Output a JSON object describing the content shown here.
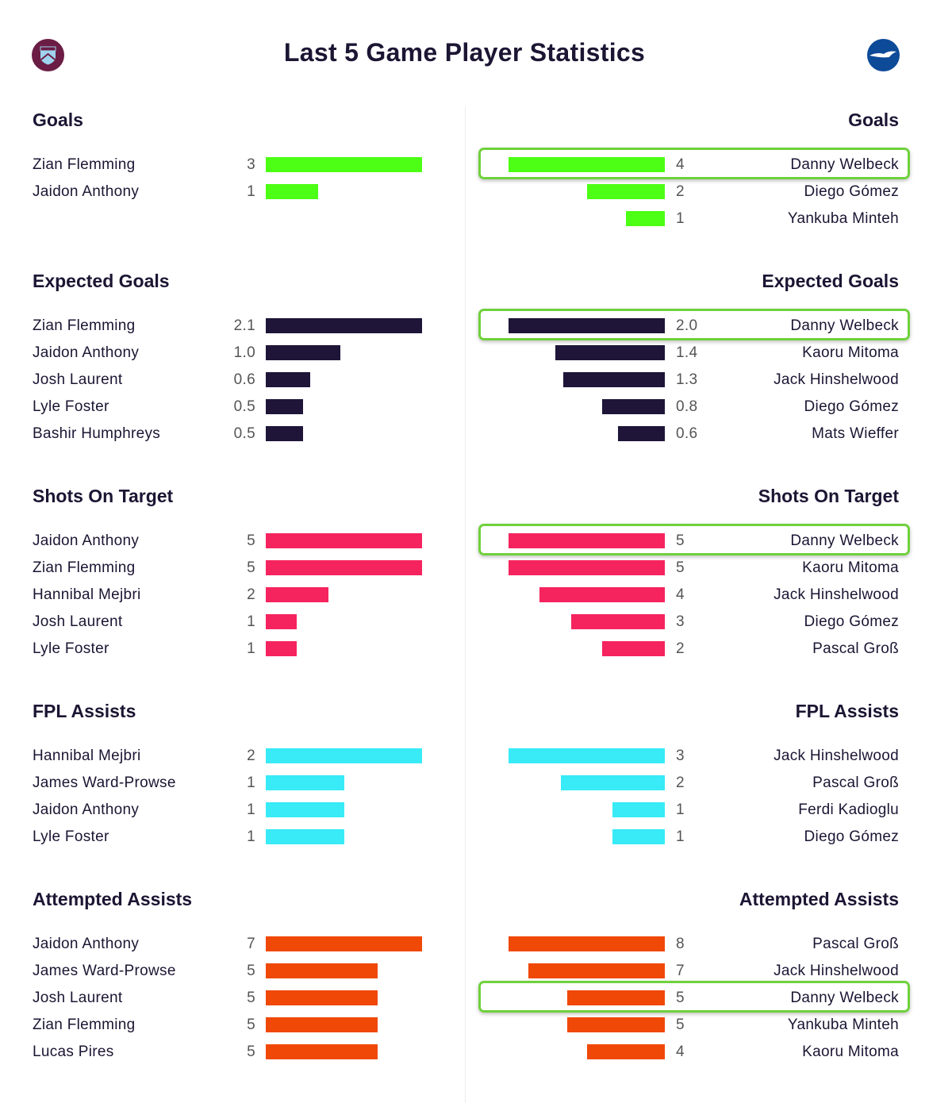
{
  "title": "Last 5 Game Player Statistics",
  "logos": {
    "left": "west-ham-crest",
    "right": "brighton-seagull-crest"
  },
  "sections": [
    {
      "heading": "Goals",
      "color": "#4cff14",
      "left": [
        {
          "name": "Zian Flemming",
          "value": "3"
        },
        {
          "name": "Jaidon Anthony",
          "value": "1"
        }
      ],
      "right": [
        {
          "name": "Danny Welbeck",
          "value": "4",
          "highlighted": true
        },
        {
          "name": "Diego Gómez",
          "value": "2"
        },
        {
          "name": "Yankuba Minteh",
          "value": "1"
        }
      ]
    },
    {
      "heading": "Expected Goals",
      "color": "#1e1538",
      "left": [
        {
          "name": "Zian Flemming",
          "value": "2.1"
        },
        {
          "name": "Jaidon Anthony",
          "value": "1.0"
        },
        {
          "name": "Josh Laurent",
          "value": "0.6"
        },
        {
          "name": "Lyle Foster",
          "value": "0.5"
        },
        {
          "name": "Bashir Humphreys",
          "value": "0.5"
        }
      ],
      "right": [
        {
          "name": "Danny Welbeck",
          "value": "2.0",
          "highlighted": true
        },
        {
          "name": "Kaoru Mitoma",
          "value": "1.4"
        },
        {
          "name": "Jack Hinshelwood",
          "value": "1.3"
        },
        {
          "name": "Diego Gómez",
          "value": "0.8"
        },
        {
          "name": "Mats Wieffer",
          "value": "0.6"
        }
      ]
    },
    {
      "heading": "Shots On Target",
      "color": "#f5245e",
      "left": [
        {
          "name": "Jaidon Anthony",
          "value": "5"
        },
        {
          "name": "Zian Flemming",
          "value": "5"
        },
        {
          "name": "Hannibal Mejbri",
          "value": "2"
        },
        {
          "name": "Josh Laurent",
          "value": "1"
        },
        {
          "name": "Lyle Foster",
          "value": "1"
        }
      ],
      "right": [
        {
          "name": "Danny Welbeck",
          "value": "5",
          "highlighted": true
        },
        {
          "name": "Kaoru Mitoma",
          "value": "5"
        },
        {
          "name": "Jack Hinshelwood",
          "value": "4"
        },
        {
          "name": "Diego Gómez",
          "value": "3"
        },
        {
          "name": "Pascal Groß",
          "value": "2"
        }
      ]
    },
    {
      "heading": "FPL Assists",
      "color": "#38ebf7",
      "left": [
        {
          "name": "Hannibal Mejbri",
          "value": "2"
        },
        {
          "name": "James Ward-Prowse",
          "value": "1"
        },
        {
          "name": "Jaidon Anthony",
          "value": "1"
        },
        {
          "name": "Lyle Foster",
          "value": "1"
        }
      ],
      "right": [
        {
          "name": "Jack Hinshelwood",
          "value": "3"
        },
        {
          "name": "Pascal Groß",
          "value": "2"
        },
        {
          "name": "Ferdi Kadioglu",
          "value": "1"
        },
        {
          "name": "Diego Gómez",
          "value": "1"
        }
      ]
    },
    {
      "heading": "Attempted Assists",
      "color": "#f04806",
      "left": [
        {
          "name": "Jaidon Anthony",
          "value": "7"
        },
        {
          "name": "James Ward-Prowse",
          "value": "5"
        },
        {
          "name": "Josh Laurent",
          "value": "5"
        },
        {
          "name": "Zian Flemming",
          "value": "5"
        },
        {
          "name": "Lucas Pires",
          "value": "5"
        }
      ],
      "right": [
        {
          "name": "Pascal Groß",
          "value": "8"
        },
        {
          "name": "Jack Hinshelwood",
          "value": "7"
        },
        {
          "name": "Danny Welbeck",
          "value": "5",
          "highlighted": true
        },
        {
          "name": "Yankuba Minteh",
          "value": "5"
        },
        {
          "name": "Kaoru Mitoma",
          "value": "4"
        }
      ]
    }
  ]
}
